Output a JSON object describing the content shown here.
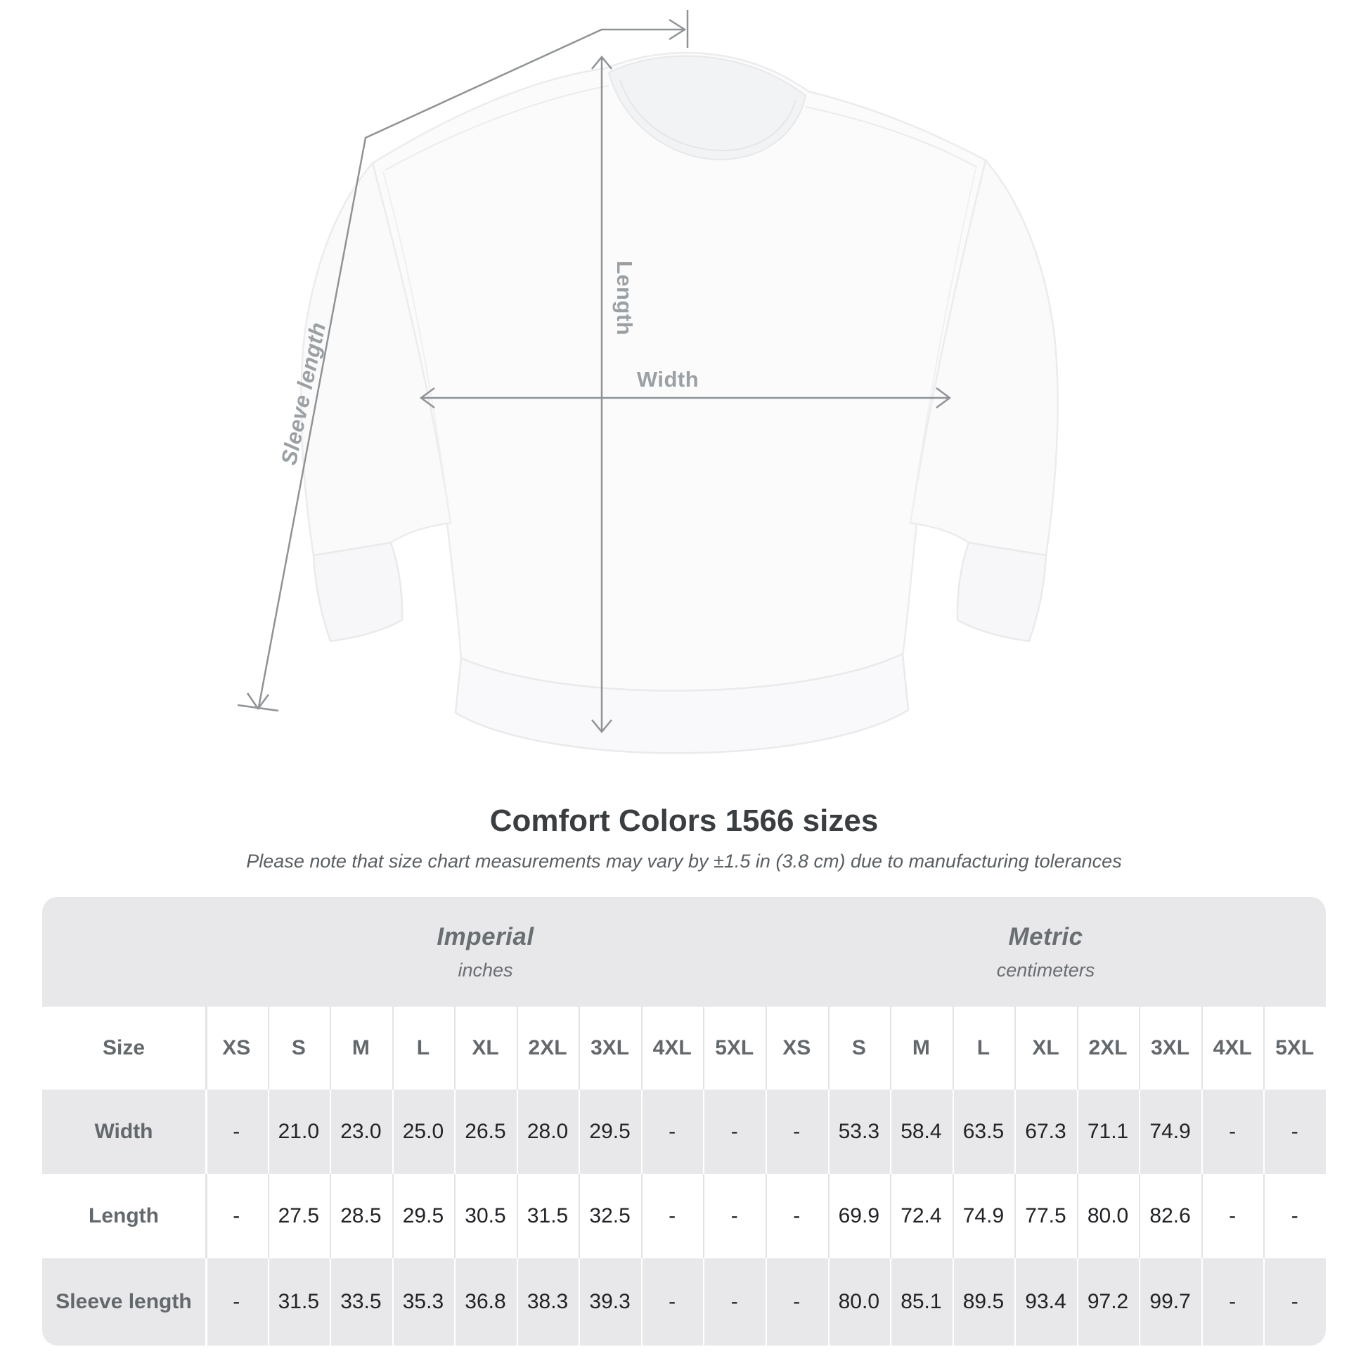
{
  "diagram": {
    "length_label": "Length",
    "width_label": "Width",
    "sleeve_label": "Sleeve length"
  },
  "title": "Comfort Colors 1566 sizes",
  "subtitle": "Please note that size chart measurements may vary by ±1.5 in (3.8 cm) due to manufacturing tolerances",
  "table": {
    "size_header": "Size",
    "unit_groups": [
      {
        "name": "Imperial",
        "unit": "inches"
      },
      {
        "name": "Metric",
        "unit": "centimeters"
      }
    ],
    "columns": [
      "XS",
      "S",
      "M",
      "L",
      "XL",
      "2XL",
      "3XL",
      "4XL",
      "5XL",
      "XS",
      "S",
      "M",
      "L",
      "XL",
      "2XL",
      "3XL",
      "4XL",
      "5XL"
    ],
    "rows": [
      {
        "label": "Width",
        "values": [
          "-",
          "21.0",
          "23.0",
          "25.0",
          "26.5",
          "28.0",
          "29.5",
          "-",
          "-",
          "-",
          "53.3",
          "58.4",
          "63.5",
          "67.3",
          "71.1",
          "74.9",
          "-",
          "-"
        ]
      },
      {
        "label": "Length",
        "values": [
          "-",
          "27.5",
          "28.5",
          "29.5",
          "30.5",
          "31.5",
          "32.5",
          "-",
          "-",
          "-",
          "69.9",
          "72.4",
          "74.9",
          "77.5",
          "80.0",
          "82.6",
          "-",
          "-"
        ]
      },
      {
        "label": "Sleeve length",
        "values": [
          "-",
          "31.5",
          "33.5",
          "35.3",
          "36.8",
          "38.3",
          "39.3",
          "-",
          "-",
          "-",
          "80.0",
          "85.1",
          "89.5",
          "93.4",
          "97.2",
          "99.7",
          "-",
          "-"
        ]
      }
    ]
  },
  "colors": {
    "arrow": "#8f9396",
    "diagram_label": "#9aa0a4",
    "table_band": "#e8e8ea",
    "muted_text": "#63686c",
    "value_text": "#212326",
    "title_text": "#3a3e41"
  }
}
